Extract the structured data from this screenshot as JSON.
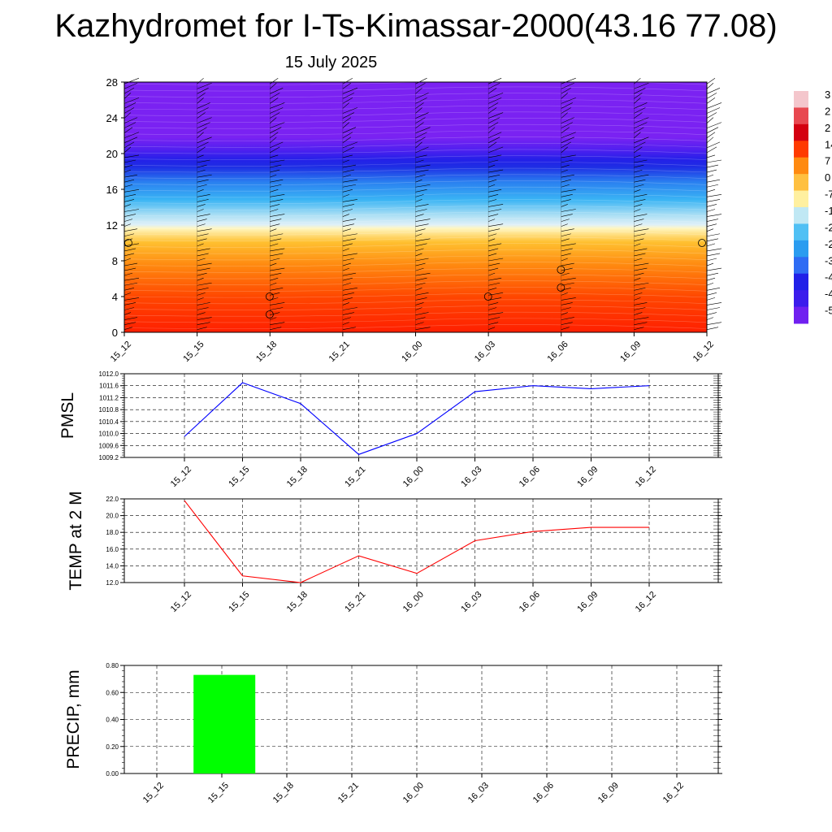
{
  "header": {
    "title": "Kazhydromet for I-Ts-Kimassar-2000(43.16 77.08)",
    "date": "15 July 2025"
  },
  "chart_data": [
    {
      "type": "heatmap",
      "name": "height-time-section",
      "x_ticks": [
        "15_12",
        "15_15",
        "15_18",
        "15_21",
        "16_00",
        "16_03",
        "16_06",
        "16_09",
        "16_12"
      ],
      "y_ticks": [
        0,
        4,
        8,
        12,
        16,
        20,
        24,
        28
      ],
      "ylim": [
        0,
        28
      ],
      "colorbar_labels": [
        "3",
        "2",
        "2",
        "14",
        "7",
        "0",
        "-7",
        "-1",
        "-2",
        "-2",
        "-3",
        "-4",
        "-4",
        "-5"
      ],
      "colorbar_colors": [
        "#f4c6cc",
        "#e84850",
        "#d40010",
        "#ff3a00",
        "#ff8a10",
        "#ffc040",
        "#fff0a0",
        "#c0e8f4",
        "#50c0f4",
        "#2a9cf0",
        "#2e6cf4",
        "#2020e8",
        "#3c1cec",
        "#7020f0"
      ],
      "calm_circles": [
        [
          0,
          10
        ],
        [
          3,
          2
        ],
        [
          3,
          4
        ],
        [
          6,
          4
        ],
        [
          7,
          5
        ],
        [
          7,
          7
        ],
        [
          9,
          10
        ]
      ]
    },
    {
      "type": "line",
      "name": "pmsl",
      "ylabel": "PMSL",
      "categories": [
        "15_12",
        "15_15",
        "15_18",
        "15_21",
        "16_00",
        "16_03",
        "16_06",
        "16_09",
        "16_12"
      ],
      "series": [
        {
          "values": [
            1009.9,
            1011.7,
            1011.0,
            1009.3,
            1010.0,
            1011.4,
            1011.6,
            1011.5,
            1011.6
          ],
          "color": "#0000ff"
        }
      ],
      "y_ticks": [
        "1009.2",
        "1009.6",
        "1010.0",
        "1010.4",
        "1010.8",
        "1011.2",
        "1011.6",
        "1012.0"
      ],
      "ylim": [
        1009.2,
        1012.0
      ],
      "grid": true
    },
    {
      "type": "line",
      "name": "temp2m",
      "ylabel": "TEMP at 2 M",
      "categories": [
        "15_12",
        "15_15",
        "15_18",
        "15_21",
        "16_00",
        "16_03",
        "16_06",
        "16_09",
        "16_12"
      ],
      "series": [
        {
          "values": [
            21.8,
            12.8,
            12.0,
            15.2,
            13.1,
            17.0,
            18.1,
            18.6,
            18.6
          ],
          "color": "#ff0000"
        }
      ],
      "y_ticks": [
        "12.0",
        "14.0",
        "16.0",
        "18.0",
        "20.0",
        "22.0"
      ],
      "ylim": [
        12.0,
        22.0
      ],
      "grid": true
    },
    {
      "type": "bar",
      "name": "precip",
      "ylabel": "PRECIP, mm",
      "categories": [
        "15_12",
        "15_15",
        "15_18",
        "15_21",
        "16_00",
        "16_03",
        "16_06",
        "16_09",
        "16_12"
      ],
      "values": [
        0,
        0.73,
        0,
        0,
        0,
        0,
        0,
        0,
        0
      ],
      "color": "#00ff00",
      "y_ticks": [
        "0.00",
        "0.20",
        "0.40",
        "0.60",
        "0.80"
      ],
      "ylim": [
        0,
        0.8
      ],
      "grid": true
    }
  ]
}
